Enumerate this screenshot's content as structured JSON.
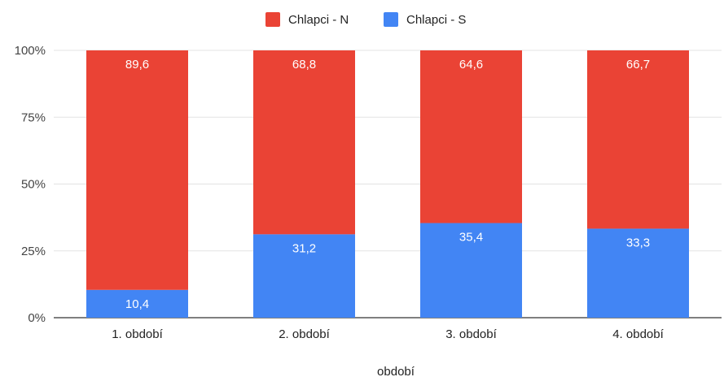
{
  "chart_data": {
    "type": "bar",
    "stacked": "percent",
    "categories": [
      "1. období",
      "2. období",
      "3. období",
      "4. období"
    ],
    "series": [
      {
        "name": "Chlapci - S",
        "color": "#4285f4",
        "values": [
          10.4,
          31.2,
          35.4,
          33.3
        ],
        "labels": [
          "10,4",
          "31,2",
          "35,4",
          "33,3"
        ]
      },
      {
        "name": "Chlapci - N",
        "color": "#ea4335",
        "values": [
          89.6,
          68.8,
          64.6,
          66.7
        ],
        "labels": [
          "89,6",
          "68,8",
          "64,6",
          "66,7"
        ]
      }
    ],
    "legend_order": [
      "Chlapci - N",
      "Chlapci - S"
    ],
    "legend_position": "top",
    "xlabel": "období",
    "ylabel": "",
    "yticks": [
      "0%",
      "25%",
      "50%",
      "75%",
      "100%"
    ],
    "ylim": [
      0,
      100
    ],
    "grid": true
  }
}
